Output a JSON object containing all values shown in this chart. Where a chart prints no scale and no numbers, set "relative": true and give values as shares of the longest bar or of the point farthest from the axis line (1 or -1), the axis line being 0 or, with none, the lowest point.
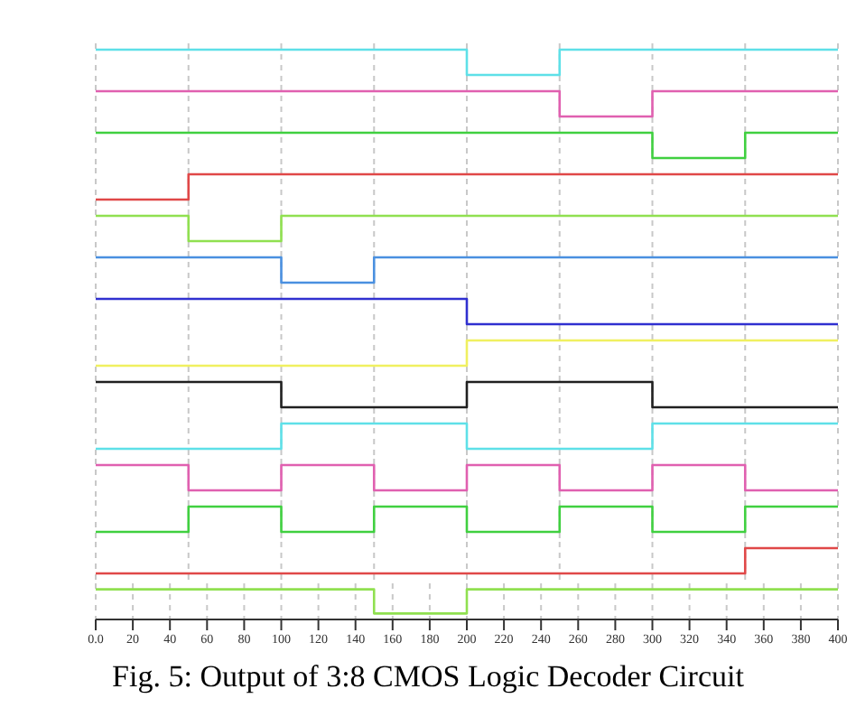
{
  "chart_data": [
    {
      "type": "step",
      "relative": true,
      "x": [
        0,
        200,
        250,
        400
      ],
      "values": [
        1,
        0,
        1,
        1
      ],
      "color": "#5ee0e8",
      "xlim": [
        0,
        400
      ],
      "grid": "x",
      "tick_labels": false
    },
    {
      "type": "step",
      "relative": true,
      "x": [
        0,
        250,
        300,
        400
      ],
      "values": [
        1,
        0,
        1,
        1
      ],
      "color": "#e060b0",
      "xlim": [
        0,
        400
      ],
      "grid": "x",
      "tick_labels": false
    },
    {
      "type": "step",
      "relative": true,
      "x": [
        0,
        300,
        350,
        400
      ],
      "values": [
        1,
        0,
        1,
        1
      ],
      "color": "#40d040",
      "xlim": [
        0,
        400
      ],
      "grid": "x",
      "tick_labels": false
    },
    {
      "type": "step",
      "relative": true,
      "x": [
        0,
        50,
        200,
        400
      ],
      "values": [
        0,
        1,
        1,
        1
      ],
      "color": "#e04848",
      "xlim": [
        0,
        400
      ],
      "grid": "x",
      "tick_labels": false
    },
    {
      "type": "step",
      "relative": true,
      "x": [
        0,
        50,
        100,
        400
      ],
      "values": [
        1,
        0,
        1,
        1
      ],
      "color": "#90e050",
      "xlim": [
        0,
        400
      ],
      "grid": "x",
      "tick_labels": false
    },
    {
      "type": "step",
      "relative": true,
      "x": [
        0,
        100,
        150,
        400
      ],
      "values": [
        1,
        0,
        1,
        1
      ],
      "color": "#4a90e0",
      "xlim": [
        0,
        400
      ],
      "grid": "x",
      "tick_labels": false
    },
    {
      "type": "step",
      "relative": true,
      "x": [
        0,
        200,
        300,
        400
      ],
      "values": [
        1,
        0,
        0,
        0
      ],
      "color": "#3030d0",
      "xlim": [
        0,
        400
      ],
      "grid": "x",
      "tick_labels": false
    },
    {
      "type": "step",
      "relative": true,
      "x": [
        0,
        200,
        300,
        400
      ],
      "values": [
        0,
        1,
        1,
        1
      ],
      "color": "#f0f060",
      "xlim": [
        0,
        400
      ],
      "grid": "x",
      "tick_labels": false
    },
    {
      "type": "step",
      "relative": true,
      "x": [
        0,
        100,
        200,
        300,
        400
      ],
      "values": [
        1,
        0,
        1,
        0,
        0
      ],
      "color": "#202020",
      "xlim": [
        0,
        400
      ],
      "grid": "x",
      "tick_labels": false
    },
    {
      "type": "step",
      "relative": true,
      "x": [
        0,
        100,
        200,
        300,
        400
      ],
      "values": [
        0,
        1,
        0,
        1,
        1
      ],
      "color": "#5ee0e8",
      "xlim": [
        0,
        400
      ],
      "grid": "x",
      "tick_labels": false
    },
    {
      "type": "step",
      "relative": true,
      "x": [
        0,
        50,
        100,
        150,
        200,
        250,
        300,
        350,
        400
      ],
      "values": [
        1,
        0,
        1,
        0,
        1,
        0,
        1,
        0,
        0
      ],
      "color": "#e060b0",
      "xlim": [
        0,
        400
      ],
      "grid": "x",
      "tick_labels": false
    },
    {
      "type": "step",
      "relative": true,
      "x": [
        0,
        50,
        100,
        150,
        200,
        250,
        300,
        350,
        400
      ],
      "values": [
        0,
        1,
        0,
        1,
        0,
        1,
        0,
        1,
        1
      ],
      "color": "#40d040",
      "xlim": [
        0,
        400
      ],
      "grid": "x",
      "tick_labels": false
    },
    {
      "type": "step",
      "relative": true,
      "x": [
        0,
        200,
        350,
        400
      ],
      "values": [
        0,
        0,
        1,
        1
      ],
      "color": "#e04848",
      "xlim": [
        0,
        400
      ],
      "grid": "x",
      "tick_labels": false
    },
    {
      "type": "step",
      "relative": true,
      "x": [
        0,
        150,
        200,
        400
      ],
      "values": [
        1,
        0,
        1,
        1
      ],
      "color": "#90e050",
      "xlim": [
        0,
        400
      ],
      "grid": "x",
      "tick_labels": "x",
      "xticks": [
        {
          "value": 0,
          "label": "0.0"
        },
        20,
        40,
        60,
        80,
        100,
        120,
        140,
        160,
        180,
        200,
        220,
        240,
        260,
        280,
        300,
        320,
        340,
        360,
        380,
        400
      ],
      "annotations": [
        "Fig. 5: Output of 3:8 CMOS Logic Decoder Circuit"
      ]
    }
  ]
}
